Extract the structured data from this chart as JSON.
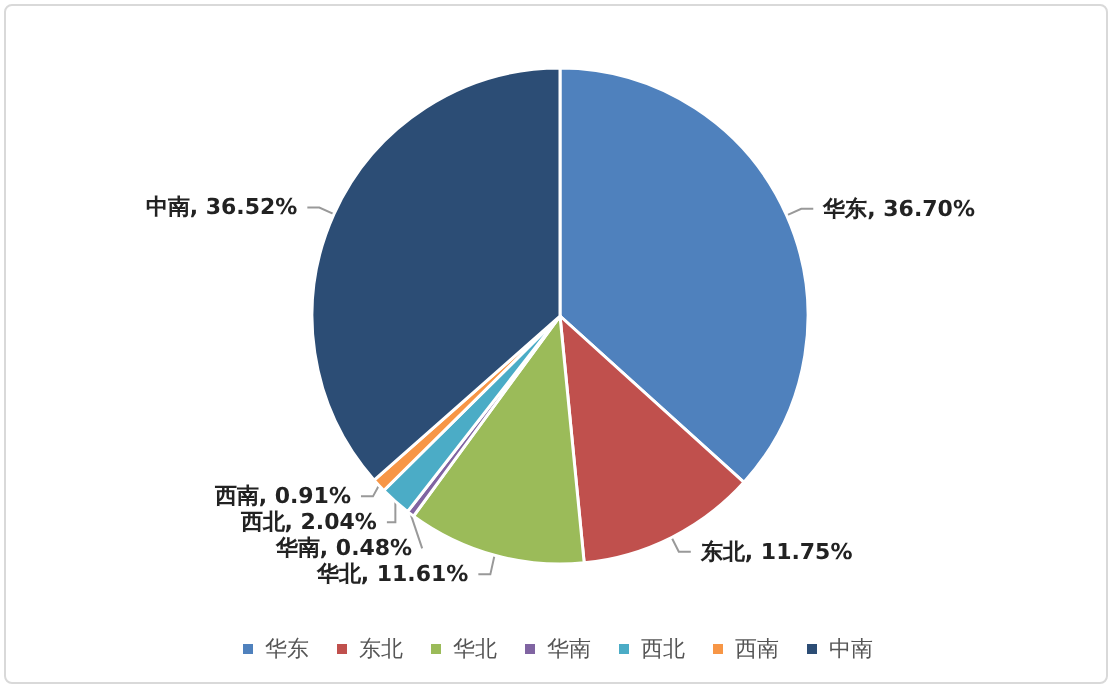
{
  "chart_data": {
    "type": "pie",
    "categories": [
      "华东",
      "东北",
      "华北",
      "华南",
      "西北",
      "西南",
      "中南"
    ],
    "values": [
      36.7,
      11.75,
      11.61,
      0.48,
      2.04,
      0.91,
      36.52
    ],
    "colors": [
      "#4f81bd",
      "#c0504d",
      "#9bbb59",
      "#8064a2",
      "#4bacc6",
      "#f79646",
      "#2c4d75"
    ],
    "value_labels": [
      "华东, 36.70%",
      "东北, 11.75%",
      "华北, 11.61%",
      "华南, 0.48%",
      "西北, 2.04%",
      "西南, 0.91%",
      "中南, 36.52%"
    ],
    "legend": "bottom"
  }
}
